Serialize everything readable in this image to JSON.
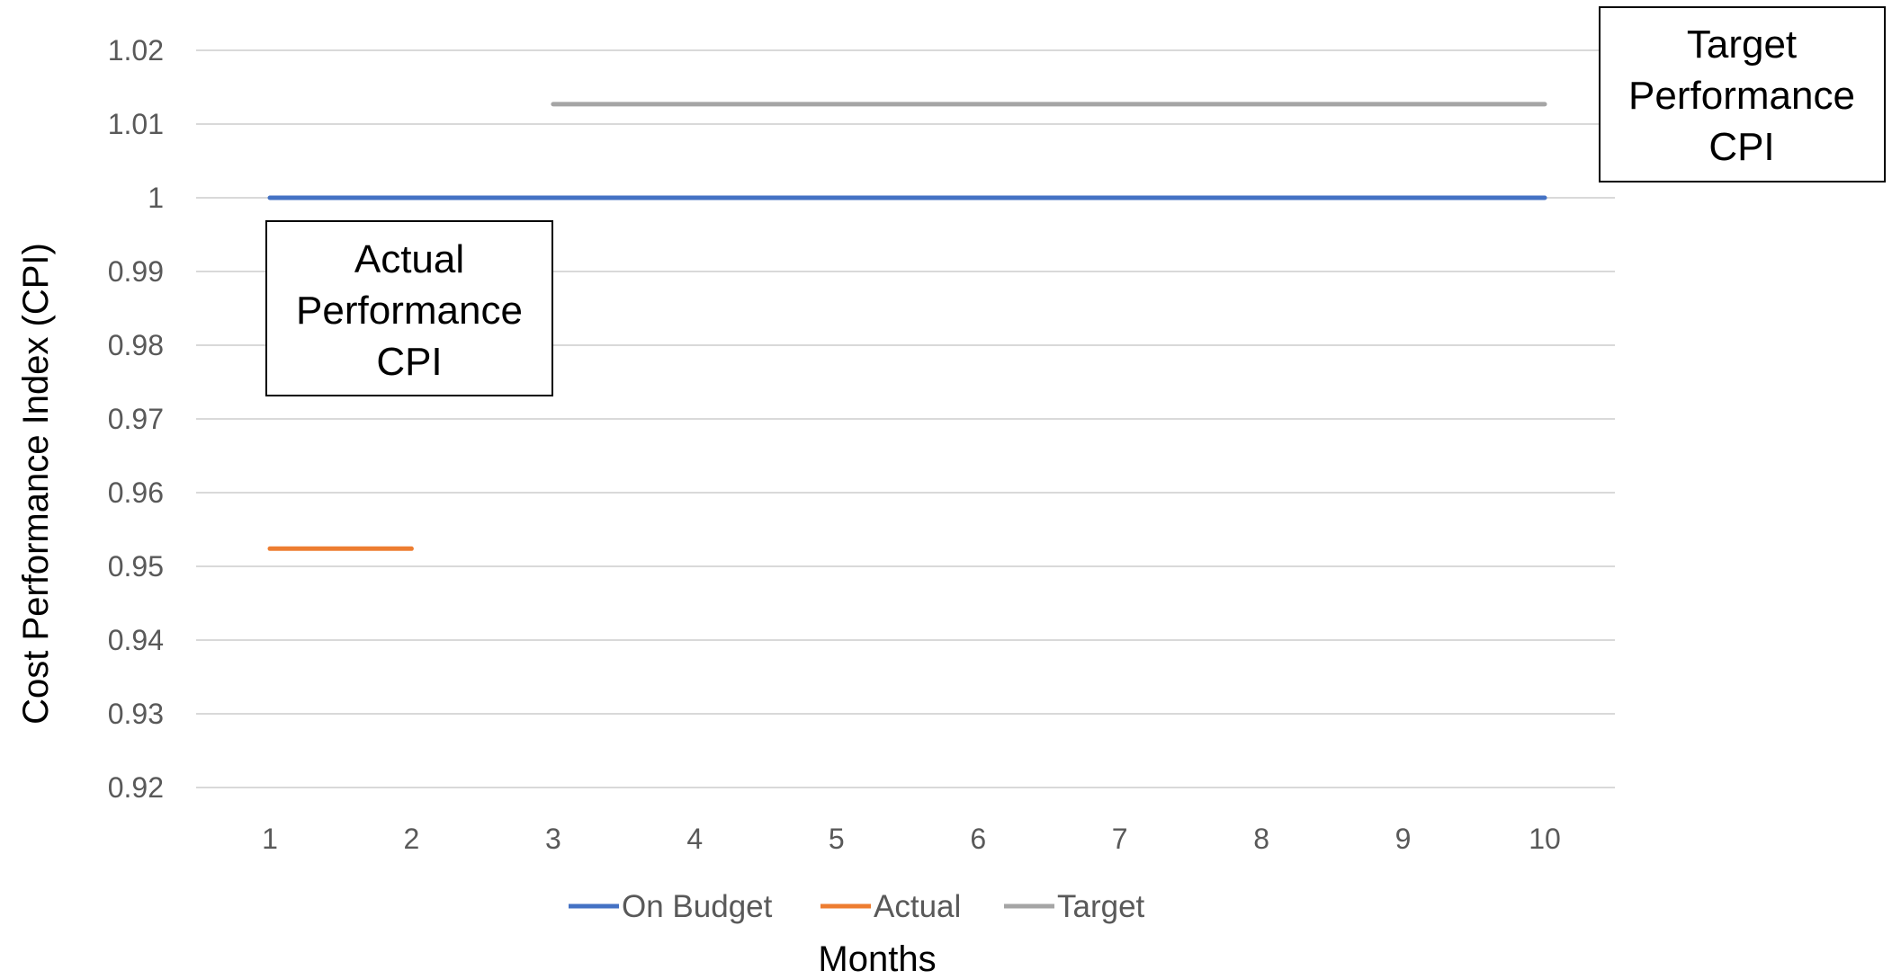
{
  "chart_data": {
    "type": "line",
    "xlabel": "Months",
    "ylabel": "Cost Performance Index (CPI)",
    "x": [
      1,
      2,
      3,
      4,
      5,
      6,
      7,
      8,
      9,
      10
    ],
    "ylim": [
      0.92,
      1.02
    ],
    "yticks": [
      "0.92",
      "0.93",
      "0.94",
      "0.95",
      "0.96",
      "0.97",
      "0.98",
      "0.99",
      "1",
      "1.01",
      "1.02"
    ],
    "grid": true,
    "legend_position": "bottom",
    "series": [
      {
        "name": "On Budget",
        "color": "#4472C4",
        "values": [
          1,
          1,
          1,
          1,
          1,
          1,
          1,
          1,
          1,
          1
        ]
      },
      {
        "name": "Actual",
        "color": "#ED7D31",
        "values": [
          0.9524,
          0.9524,
          null,
          null,
          null,
          null,
          null,
          null,
          null,
          null
        ]
      },
      {
        "name": "Target",
        "color": "#A5A5A5",
        "values": [
          null,
          null,
          1.0127,
          1.0127,
          1.0127,
          1.0127,
          1.0127,
          1.0127,
          1.0127,
          1.0127
        ]
      }
    ],
    "annotations": [
      {
        "lines": [
          "Actual",
          "Performance",
          "CPI"
        ]
      },
      {
        "lines": [
          "Target",
          "Performance",
          "CPI"
        ]
      }
    ]
  }
}
